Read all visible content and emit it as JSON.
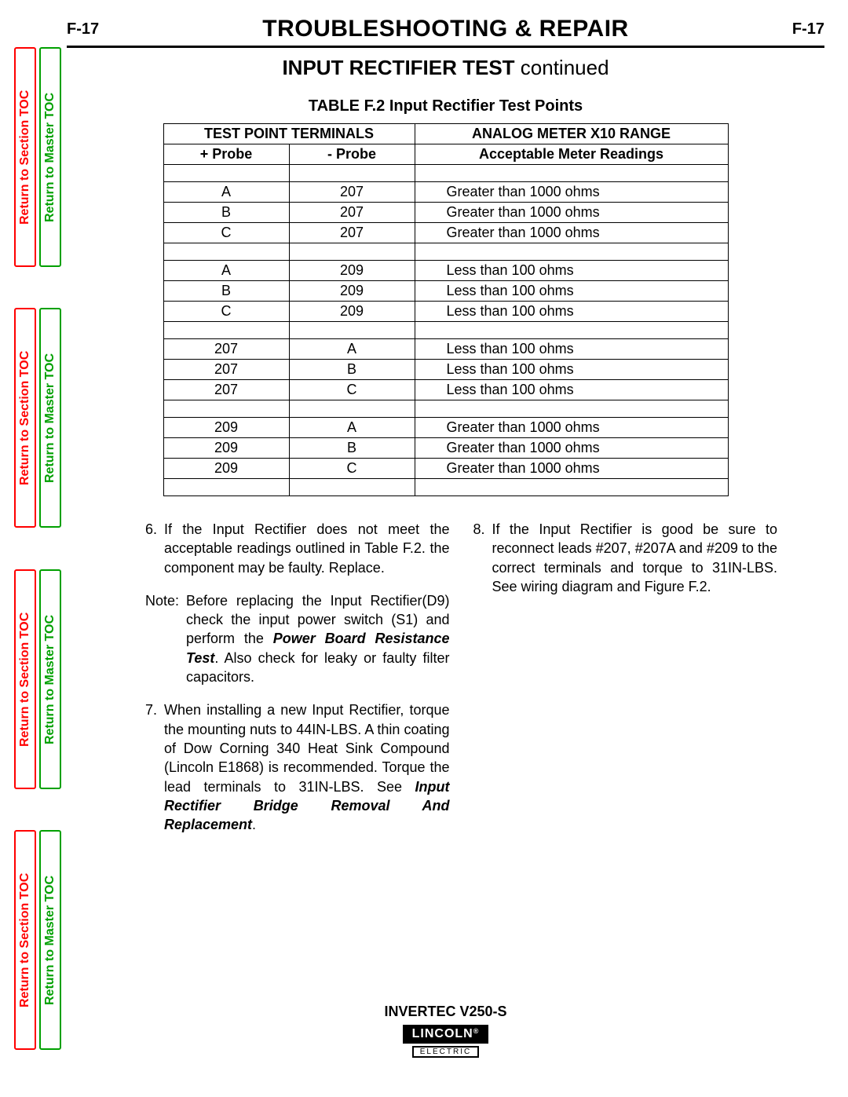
{
  "page_number": "F-17",
  "title": "TROUBLESHOOTING & REPAIR",
  "subtitle_main": "INPUT RECTIFIER TEST",
  "subtitle_cont": " continued",
  "table_title": "TABLE F.2 Input Rectifier Test Points",
  "side_tabs": {
    "section_label": "Return to Section TOC",
    "master_label": "Return to Master TOC",
    "section_color": "#ff0000",
    "master_color": "#00a000"
  },
  "table": {
    "header_group1": "TEST POINT TERMINALS",
    "header_group2": "ANALOG METER X10 RANGE",
    "header_col1": "+ Probe",
    "header_col2": "- Probe",
    "header_col3": "Acceptable Meter Readings",
    "groups": [
      [
        {
          "p": "A",
          "n": "207",
          "r": "Greater than 1000 ohms"
        },
        {
          "p": "B",
          "n": "207",
          "r": "Greater than 1000 ohms"
        },
        {
          "p": "C",
          "n": "207",
          "r": "Greater than 1000 ohms"
        }
      ],
      [
        {
          "p": "A",
          "n": "209",
          "r": "Less than 100 ohms"
        },
        {
          "p": "B",
          "n": "209",
          "r": "Less than 100 ohms"
        },
        {
          "p": "C",
          "n": "209",
          "r": "Less than 100 ohms"
        }
      ],
      [
        {
          "p": "207",
          "n": "A",
          "r": "Less than 100 ohms"
        },
        {
          "p": "207",
          "n": "B",
          "r": "Less than 100 ohms"
        },
        {
          "p": "207",
          "n": "C",
          "r": "Less than 100 ohms"
        }
      ],
      [
        {
          "p": "209",
          "n": "A",
          "r": "Greater than 1000 ohms"
        },
        {
          "p": "209",
          "n": "B",
          "r": "Greater than 1000 ohms"
        },
        {
          "p": "209",
          "n": "C",
          "r": "Greater than 1000 ohms"
        }
      ]
    ]
  },
  "steps": {
    "s6_num": "6.",
    "s6_text": "If the Input Rectifier does not meet the acceptable readings outlined in Table F.2. the component may be faulty. Replace.",
    "note_label": "Note:",
    "note_pre": "Before replacing the Input Rectifier(D9) check the input power switch (S1) and perform the ",
    "note_bold": "Power Board Resistance Test",
    "note_post": ". Also check for leaky or faulty filter capacitors.",
    "s7_num": "7.",
    "s7_pre": "When installing a new Input Rectifier, torque the mounting nuts to 44IN-LBS. A thin coating of Dow Corning 340 Heat Sink Compound (Lincoln E1868) is recommended. Torque the lead terminals to 31IN-LBS. See ",
    "s7_bold": "Input Rectifier Bridge Removal And Replacement",
    "s7_post": ".",
    "s8_num": "8.",
    "s8_text": "If the Input Rectifier is good be sure to reconnect leads #207, #207A and #209 to the correct terminals and torque to 31IN-LBS. See wiring diagram and Figure F.2."
  },
  "footer": {
    "product": "INVERTEC V250-S",
    "logo_main": "LINCOLN",
    "logo_sub": "ELECTRIC"
  }
}
